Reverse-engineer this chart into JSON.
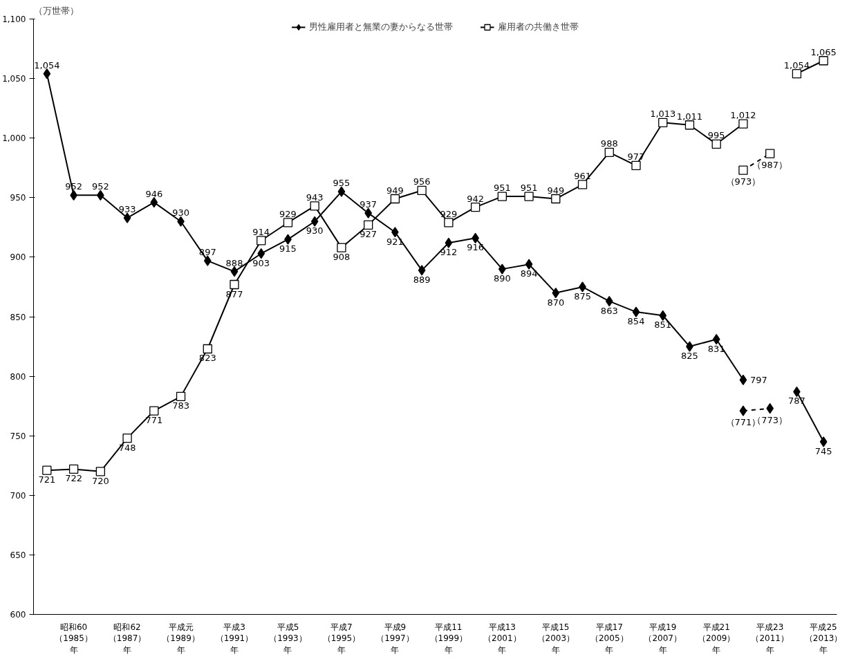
{
  "chart_data": {
    "type": "line",
    "ylabel": "（万世帯）",
    "categories": [
      null,
      "昭和60（1985）年",
      null,
      "昭和62（1987）年",
      null,
      "平成元（1989）年",
      null,
      "平成3（1991）年",
      null,
      "平成5（1993）年",
      null,
      "平成7（1995）年",
      null,
      "平成9（1997）年",
      null,
      "平成11（1999）年",
      null,
      "平成13（2001）年",
      null,
      "平成15（2003）年",
      null,
      "平成17（2005）年",
      null,
      "平成19（2007）年",
      null,
      "平成21（2009）年",
      null,
      "平成23（2011）年",
      null,
      "平成25（2013）年"
    ],
    "series": [
      {
        "name": "男性雇用者と無業の妻からなる世帯",
        "color": "#000000",
        "marker": "diamond",
        "line_style": "solid",
        "values": [
          1054,
          952,
          952,
          933,
          946,
          930,
          897,
          888,
          903,
          915,
          930,
          955,
          937,
          921,
          889,
          912,
          916,
          890,
          894,
          870,
          875,
          863,
          854,
          851,
          825,
          831,
          797,
          null,
          787,
          745
        ],
        "value_labels": [
          "1,054",
          "952",
          "952",
          "933",
          "946",
          "930",
          "897",
          "888",
          "903",
          "915",
          "930",
          "955",
          "937",
          "921",
          "889",
          "912",
          "916",
          "890",
          "894",
          "870",
          "875",
          "863",
          "854",
          "851",
          "825",
          "831",
          "797",
          null,
          "787",
          "745"
        ]
      },
      {
        "name": "雇用者の共働き世帯",
        "color": "#000000",
        "marker": "square",
        "line_style": "solid",
        "values": [
          721,
          722,
          720,
          748,
          771,
          783,
          823,
          877,
          914,
          929,
          943,
          908,
          927,
          949,
          956,
          929,
          942,
          951,
          951,
          949,
          961,
          988,
          977,
          1013,
          1011,
          995,
          1012,
          null,
          1054,
          1065
        ],
        "value_labels": [
          "721",
          "722",
          "720",
          "748",
          "771",
          "783",
          "823",
          "877",
          "914",
          "929",
          "943",
          "908",
          "927",
          "949",
          "956",
          "929",
          "942",
          "951",
          "951",
          "949",
          "961",
          "988",
          "977",
          "1,013",
          "1,011",
          "995",
          "1,012",
          null,
          "1,054",
          "1,065"
        ]
      },
      {
        "color": "#000000",
        "marker": "diamond",
        "line_style": "dashed",
        "values": [
          null,
          null,
          null,
          null,
          null,
          null,
          null,
          null,
          null,
          null,
          null,
          null,
          null,
          null,
          null,
          null,
          null,
          null,
          null,
          null,
          null,
          null,
          null,
          null,
          null,
          null,
          771,
          773,
          null,
          null
        ],
        "value_labels": [
          null,
          null,
          null,
          null,
          null,
          null,
          null,
          null,
          null,
          null,
          null,
          null,
          null,
          null,
          null,
          null,
          null,
          null,
          null,
          null,
          null,
          null,
          null,
          null,
          null,
          null,
          "（771）",
          "（773）",
          null,
          null
        ]
      },
      {
        "color": "#000000",
        "marker": "square",
        "line_style": "dashed",
        "values": [
          null,
          null,
          null,
          null,
          null,
          null,
          null,
          null,
          null,
          null,
          null,
          null,
          null,
          null,
          null,
          null,
          null,
          null,
          null,
          null,
          null,
          null,
          null,
          null,
          null,
          null,
          973,
          987,
          null,
          null
        ],
        "value_labels": [
          null,
          null,
          null,
          null,
          null,
          null,
          null,
          null,
          null,
          null,
          null,
          null,
          null,
          null,
          null,
          null,
          null,
          null,
          null,
          null,
          null,
          null,
          null,
          null,
          null,
          null,
          "（973）",
          "（987）",
          null,
          null
        ]
      }
    ],
    "ylim": [
      600,
      1100
    ],
    "yticks": [
      600,
      650,
      700,
      750,
      800,
      850,
      900,
      950,
      {
        "value": 1000,
        "label": "1,000"
      },
      {
        "value": 1050,
        "label": "1,050"
      },
      {
        "value": 1100,
        "label": "1,100"
      }
    ],
    "grid": false,
    "legend": "top"
  }
}
